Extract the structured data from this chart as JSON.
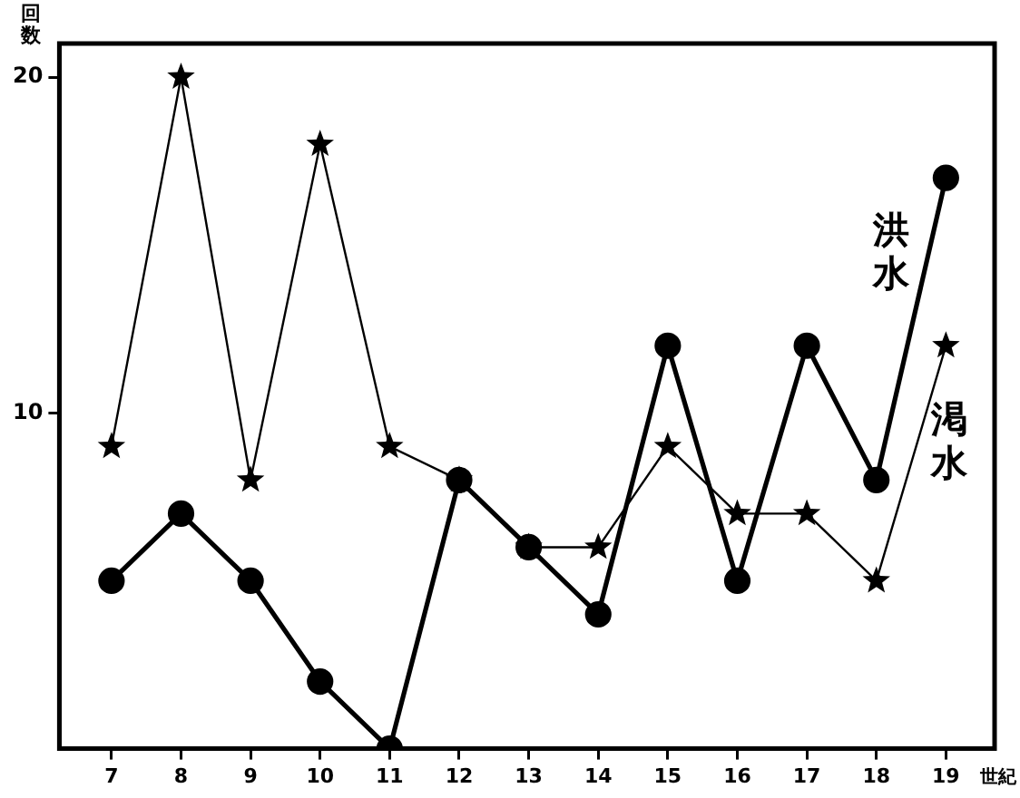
{
  "chart_data": {
    "type": "line",
    "xlabel": "世紀",
    "ylabel": "回数",
    "x": [
      7,
      8,
      9,
      10,
      11,
      12,
      13,
      14,
      15,
      16,
      17,
      18,
      19
    ],
    "xlim": [
      6.25,
      19.7
    ],
    "xticks": [
      7,
      8,
      9,
      10,
      11,
      12,
      13,
      14,
      15,
      16,
      17,
      18,
      19
    ],
    "ylim": [
      0,
      21
    ],
    "yticks": [
      10,
      20
    ],
    "series": [
      {
        "name": "洪水",
        "color": "#000000",
        "marker": "circle",
        "values": [
          5,
          7,
          5,
          2,
          0,
          8,
          6,
          4,
          12,
          5,
          12,
          8,
          17
        ]
      },
      {
        "name": "渇水",
        "color": "#000000",
        "marker": "star",
        "values": [
          9,
          20,
          8,
          18,
          9,
          8,
          6,
          6,
          9,
          7,
          7,
          5,
          12
        ]
      }
    ],
    "grid": false,
    "legend": false,
    "line_style": "solid"
  }
}
